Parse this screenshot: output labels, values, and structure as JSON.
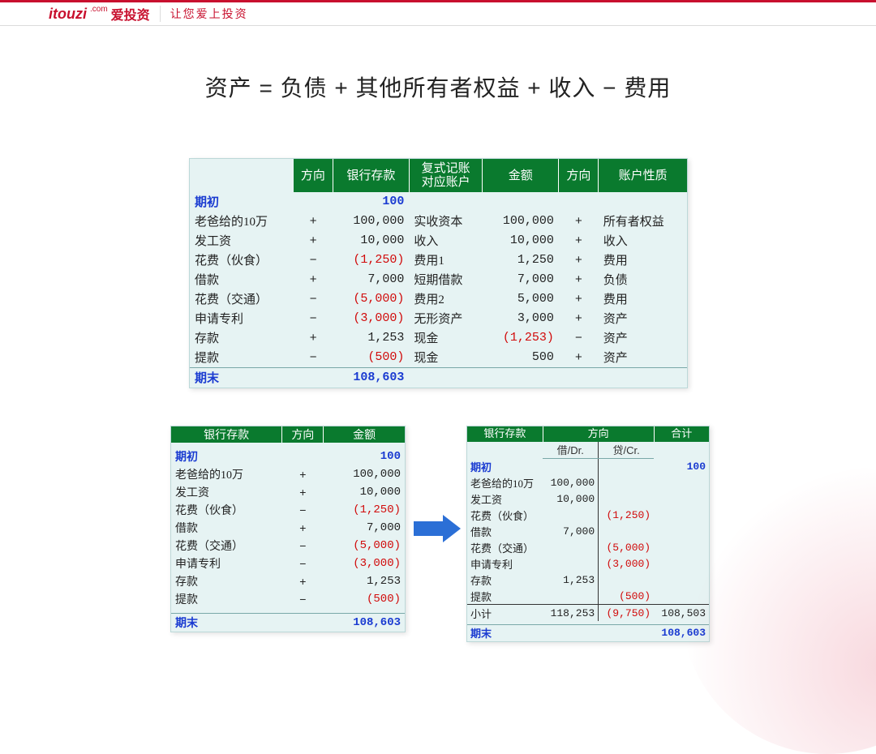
{
  "brand": {
    "logo_main": "itouzi",
    "logo_com": ".com",
    "logo_cn": "爱投资",
    "slogan": "让您爱上投资"
  },
  "title": "资产 = 负债 + 其他所有者权益 + 收入 − 费用",
  "colors": {
    "accent": "#c8102e",
    "header_bg": "#0a7a2e",
    "panel_bg": "#e6f3f3",
    "blue_text": "#1a3bd1",
    "red_text": "#d10a0a",
    "arrow": "#2b6fd6"
  },
  "top_table": {
    "headers": [
      "方向",
      "银行存款",
      "复式记账\n对应账户",
      "金额",
      "方向",
      "账户性质"
    ],
    "opening_label": "期初",
    "opening_value": "100",
    "rows": [
      {
        "label": "老爸给的10万",
        "dir1": "+",
        "bank": "100,000",
        "acct": "实收资本",
        "amt": "100,000",
        "dir2": "+",
        "nature": "所有者权益"
      },
      {
        "label": "发工资",
        "dir1": "+",
        "bank": "10,000",
        "acct": "收入",
        "amt": "10,000",
        "dir2": "+",
        "nature": "收入"
      },
      {
        "label": "花费（伙食）",
        "dir1": "−",
        "bank": "(1,250)",
        "bank_red": true,
        "acct": "费用1",
        "amt": "1,250",
        "dir2": "+",
        "nature": "费用"
      },
      {
        "label": "借款",
        "dir1": "+",
        "bank": "7,000",
        "acct": "短期借款",
        "amt": "7,000",
        "dir2": "+",
        "nature": "负债"
      },
      {
        "label": "花费（交通）",
        "dir1": "−",
        "bank": "(5,000)",
        "bank_red": true,
        "acct": "费用2",
        "amt": "5,000",
        "dir2": "+",
        "nature": "费用"
      },
      {
        "label": "申请专利",
        "dir1": "−",
        "bank": "(3,000)",
        "bank_red": true,
        "acct": "无形资产",
        "amt": "3,000",
        "dir2": "+",
        "nature": "资产"
      },
      {
        "label": "存款",
        "dir1": "+",
        "bank": "1,253",
        "acct": "现金",
        "amt": "(1,253)",
        "amt_red": true,
        "dir2": "−",
        "nature": "资产"
      },
      {
        "label": "提款",
        "dir1": "−",
        "bank": "(500)",
        "bank_red": true,
        "acct": "现金",
        "amt": "500",
        "dir2": "+",
        "nature": "资产"
      }
    ],
    "closing_label": "期末",
    "closing_value": "108,603"
  },
  "bottom_left": {
    "headers": [
      "银行存款",
      "方向",
      "金额"
    ],
    "opening_label": "期初",
    "opening_value": "100",
    "rows": [
      {
        "label": "老爸给的10万",
        "dir": "+",
        "amt": "100,000"
      },
      {
        "label": "发工资",
        "dir": "+",
        "amt": "10,000"
      },
      {
        "label": "花费（伙食）",
        "dir": "−",
        "amt": "(1,250)",
        "red": true
      },
      {
        "label": "借款",
        "dir": "+",
        "amt": "7,000"
      },
      {
        "label": "花费（交通）",
        "dir": "−",
        "amt": "(5,000)",
        "red": true
      },
      {
        "label": "申请专利",
        "dir": "−",
        "amt": "(3,000)",
        "red": true
      },
      {
        "label": "存款",
        "dir": "+",
        "amt": "1,253"
      },
      {
        "label": "提款",
        "dir": "−",
        "amt": "(500)",
        "red": true
      }
    ],
    "closing_label": "期末",
    "closing_value": "108,603"
  },
  "bottom_right": {
    "headers": [
      "银行存款",
      "方向",
      "合计"
    ],
    "sub_dr": "借/Dr.",
    "sub_cr": "贷/Cr.",
    "opening_label": "期初",
    "opening_value": "100",
    "rows": [
      {
        "label": "老爸给的10万",
        "dr": "100,000",
        "cr": ""
      },
      {
        "label": "发工资",
        "dr": "10,000",
        "cr": ""
      },
      {
        "label": "花费（伙食）",
        "dr": "",
        "cr": "(1,250)",
        "red": true
      },
      {
        "label": "借款",
        "dr": "7,000",
        "cr": ""
      },
      {
        "label": "花费（交通）",
        "dr": "",
        "cr": "(5,000)",
        "red": true
      },
      {
        "label": "申请专利",
        "dr": "",
        "cr": "(3,000)",
        "red": true
      },
      {
        "label": "存款",
        "dr": "1,253",
        "cr": ""
      },
      {
        "label": "提款",
        "dr": "",
        "cr": "(500)",
        "red": true
      }
    ],
    "subtotal_label": "小计",
    "subtotal_dr": "118,253",
    "subtotal_cr": "(9,750)",
    "subtotal_total": "108,503",
    "closing_label": "期末",
    "closing_value": "108,603"
  }
}
